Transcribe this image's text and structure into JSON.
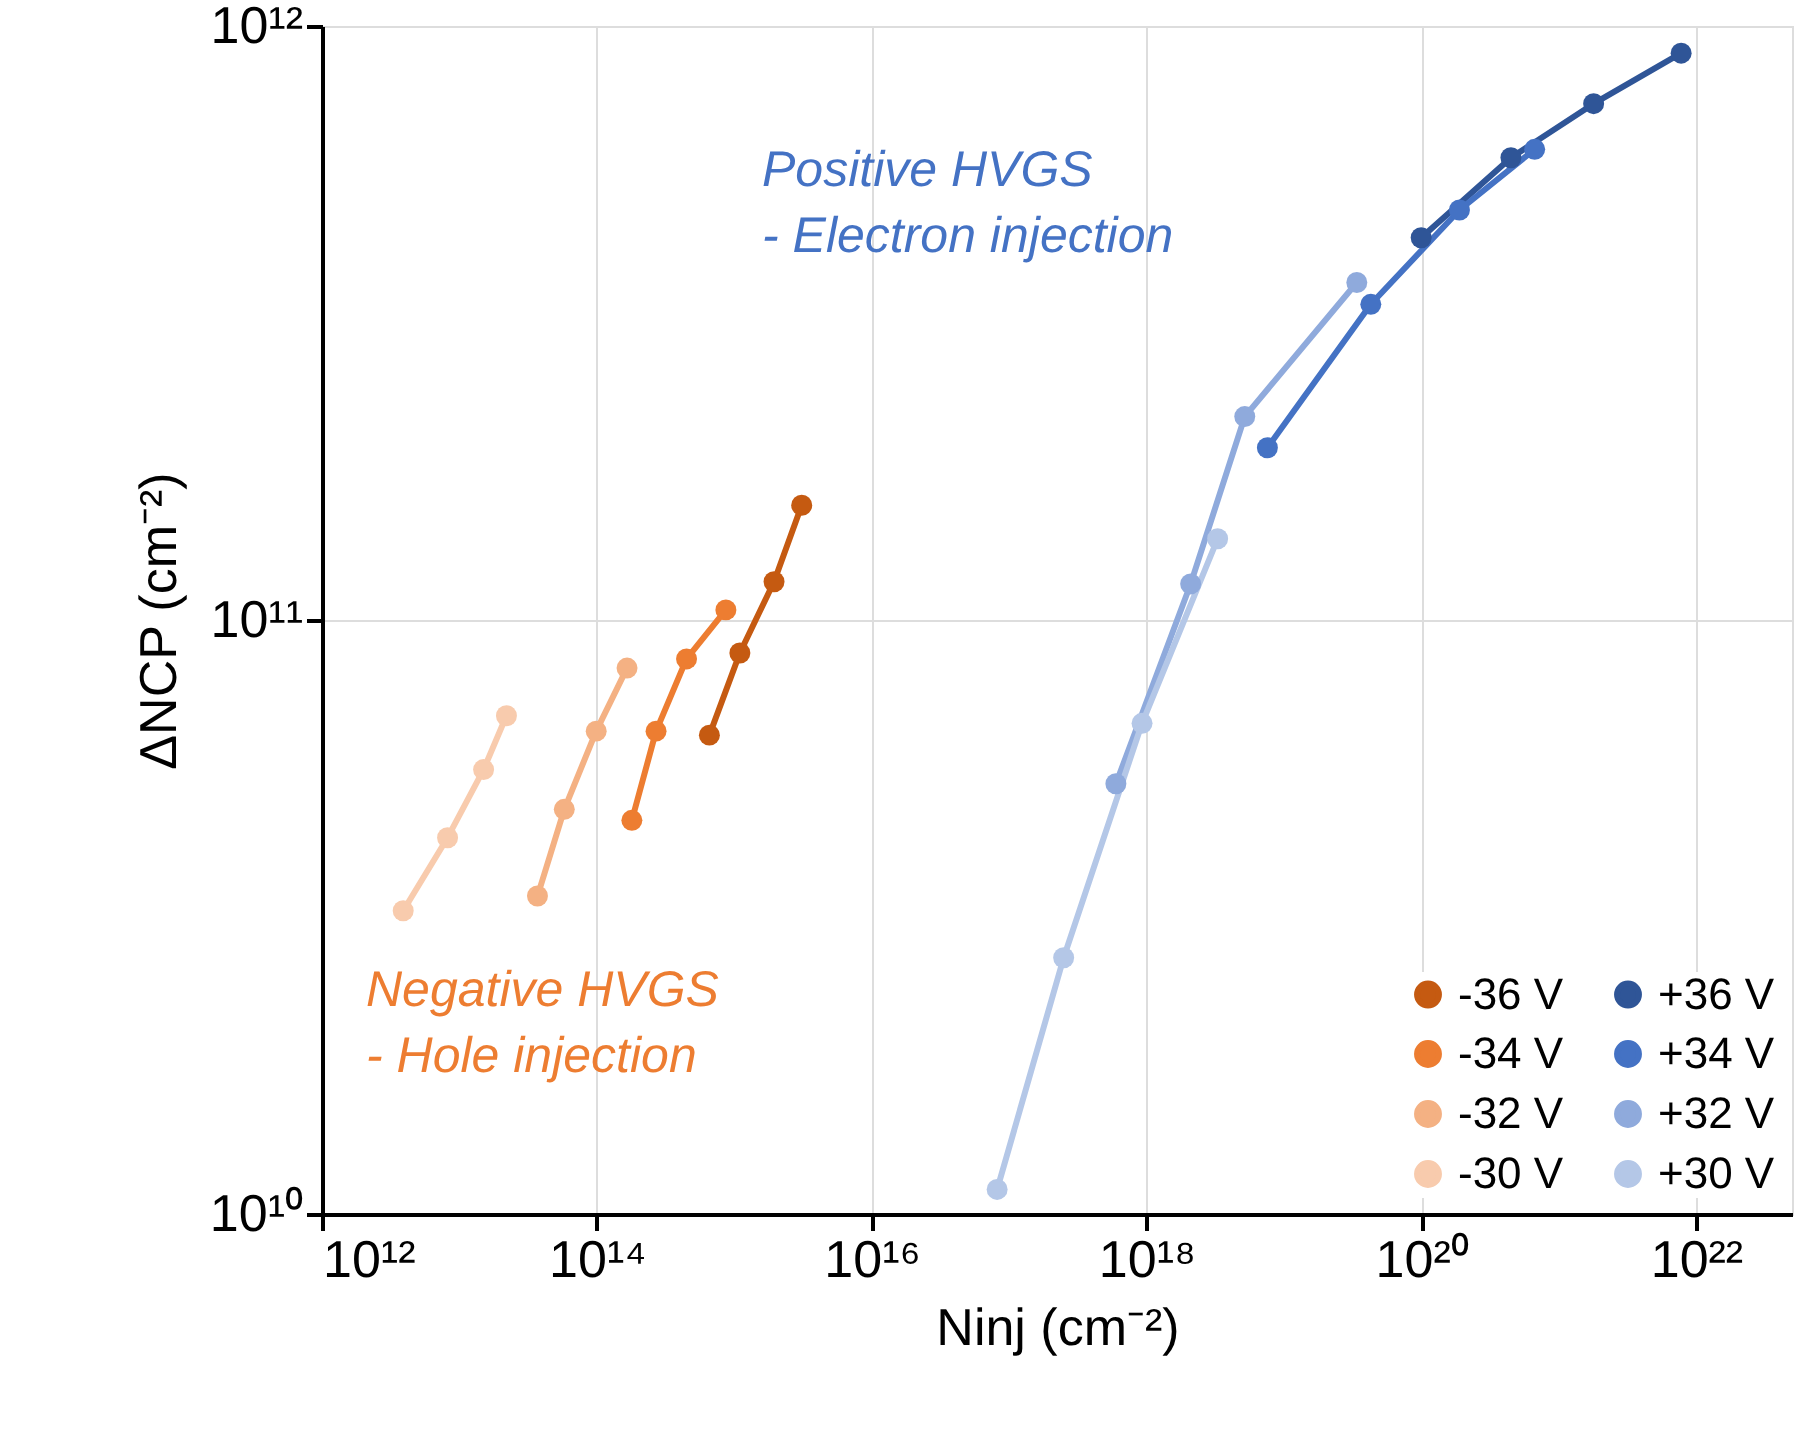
{
  "chart_data": {
    "type": "line",
    "xlabel": "Ninj (cm⁻²)",
    "ylabel": "ΔNCP (cm⁻²)",
    "annotations": [
      "Positive HVGS\n- Electron injection",
      "Negative HVGS\n- Hole injection"
    ],
    "series": [
      {
        "name": "-36 V",
        "color": "#c55a11",
        "x": [
          660000000000000.0,
          1100000000000000.0,
          1950000000000000.0,
          3100000000000000.0
        ],
        "values": [
          64000000000.0,
          88000000000.0,
          116000000000.0,
          156000000000.0
        ]
      },
      {
        "name": "-34 V",
        "color": "#ed7d31",
        "x": [
          180000000000000.0,
          270000000000000.0,
          450000000000000.0,
          870000000000000.0
        ],
        "values": [
          46000000000.0,
          65000000000.0,
          86000000000.0,
          104000000000.0
        ]
      },
      {
        "name": "-32 V",
        "color": "#f4b183",
        "x": [
          37000000000000.0,
          58000000000000.0,
          99000000000000.0,
          166000000000000.0
        ],
        "values": [
          34300000000.0,
          48000000000.0,
          65000000000.0,
          83000000000.0
        ]
      },
      {
        "name": "-30 V",
        "color": "#f8cbad",
        "x": [
          3900000000000.0,
          8200000000000.0,
          15000000000000.0,
          22000000000000.0
        ],
        "values": [
          32400000000.0,
          43000000000.0,
          56000000000.0,
          69000000000.0
        ]
      },
      {
        "name": "+36 V",
        "color": "#2f5597",
        "x": [
          1e+20,
          4.5e+20,
          1.8e+21,
          7.8e+21
        ],
        "values": [
          440000000000.0,
          600000000000.0,
          740000000000.0,
          900000000000.0
        ]
      },
      {
        "name": "+34 V",
        "color": "#4472c4",
        "x": [
          7.6e+18,
          4.3e+19,
          1.9e+20,
          6.7e+20
        ],
        "values": [
          195000000000.0,
          340000000000.0,
          490000000000.0,
          620000000000.0
        ]
      },
      {
        "name": "+32 V",
        "color": "#8faadc",
        "x": [
          6e+17,
          2.1e+18,
          5.2e+18,
          3.4e+19
        ],
        "values": [
          53000000000.0,
          115000000000.0,
          220000000000.0,
          370000000000.0
        ]
      },
      {
        "name": "+30 V",
        "color": "#b4c7e7",
        "x": [
          8.2e+16,
          2.5e+17,
          9.3e+17,
          3.3e+18
        ],
        "values": [
          11000000000.0,
          27000000000.0,
          67000000000.0,
          137000000000.0
        ]
      }
    ],
    "log": "xy",
    "xlim": [
      1000000000000.0,
      5e+22
    ],
    "xticks": [
      {
        "value": 1000000000000.0,
        "label": "10¹²"
      },
      {
        "value": 100000000000000.0,
        "label": "10¹⁴"
      },
      {
        "value": 1e+16,
        "label": "10¹⁶"
      },
      {
        "value": 1e+18,
        "label": "10¹⁸"
      },
      {
        "value": 1e+20,
        "label": "10²⁰"
      },
      {
        "value": 1e+22,
        "label": "10²²"
      }
    ],
    "ylim": [
      10000000000.0,
      1000000000000.0
    ],
    "yticks": [
      {
        "value": 10000000000.0,
        "label": "10¹⁰"
      },
      {
        "value": 100000000000.0,
        "label": "10¹¹"
      },
      {
        "value": 1000000000000.0,
        "label": "10¹²"
      }
    ],
    "grid": true,
    "legend": "bottom right",
    "marker": "circle",
    "line_style": "solid"
  }
}
